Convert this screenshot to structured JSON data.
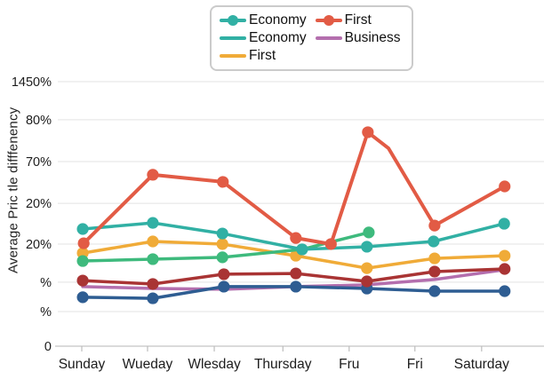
{
  "legend": {
    "items": [
      {
        "label": "Economy",
        "color": "#31b0a4",
        "marker_dot": true
      },
      {
        "label": "First",
        "color": "#e25b45",
        "marker_dot": true
      },
      {
        "label": "Economy",
        "color": "#31b0a4",
        "marker_dot": false
      },
      {
        "label": "Business",
        "color": "#b46fae",
        "marker_dot": false
      },
      {
        "label": "First",
        "color": "#f0ab38",
        "marker_dot": false
      }
    ]
  },
  "chart_data": {
    "type": "line",
    "title": "",
    "xlabel": "",
    "ylabel": "Average Pric tle difffenency",
    "categories": [
      "Sunday",
      "Wueday",
      "Wlesday",
      "Thursday",
      "Fru",
      "Fri",
      "Saturday"
    ],
    "x_tick_pos": [
      0.05,
      0.187,
      0.326,
      0.469,
      0.607,
      0.744,
      0.883
    ],
    "y_ticks": [
      {
        "label": "1450%",
        "v": 100
      },
      {
        "label": "80%",
        "v": 85.6
      },
      {
        "label": "70%",
        "v": 69.8
      },
      {
        "label": "20%",
        "v": 54.0
      },
      {
        "label": "20%",
        "v": 38.6
      },
      {
        "label": "%",
        "v": 24.2
      },
      {
        "label": "%",
        "v": 13.1
      },
      {
        "label": "0",
        "v": 0
      }
    ],
    "ylim": [
      0,
      100
    ],
    "grid": true,
    "legend_position": "top-center",
    "series": [
      {
        "legend_label": "Business",
        "color_name": "purple",
        "color": "#b46fae",
        "markers": false,
        "points": [
          [
            0.052,
            22.5
          ],
          [
            0.198,
            21.8
          ],
          [
            0.346,
            21.5
          ],
          [
            0.496,
            22.5
          ],
          [
            0.644,
            23.2
          ],
          [
            0.785,
            25.2
          ],
          [
            0.931,
            28.9
          ]
        ]
      },
      {
        "legend_label": null,
        "color_name": "dark-blue",
        "color": "#2e5d92",
        "markers": true,
        "points": [
          [
            0.052,
            18.5
          ],
          [
            0.198,
            18.1
          ],
          [
            0.346,
            22.5
          ],
          [
            0.496,
            22.5
          ],
          [
            0.644,
            21.8
          ],
          [
            0.785,
            20.8
          ],
          [
            0.931,
            20.8
          ]
        ]
      },
      {
        "legend_label": null,
        "color_name": "dark-red",
        "color": "#a93434",
        "markers": true,
        "points": [
          [
            0.052,
            24.8
          ],
          [
            0.198,
            23.5
          ],
          [
            0.346,
            27.2
          ],
          [
            0.496,
            27.5
          ],
          [
            0.644,
            24.5
          ],
          [
            0.785,
            28.2
          ],
          [
            0.931,
            29.2
          ]
        ]
      },
      {
        "legend_label": "First",
        "color_name": "yellow",
        "color": "#f0ab38",
        "markers": true,
        "points": [
          [
            0.052,
            35.2
          ],
          [
            0.198,
            39.6
          ],
          [
            0.343,
            38.6
          ],
          [
            0.496,
            34.2
          ],
          [
            0.644,
            29.5
          ],
          [
            0.785,
            33.2
          ],
          [
            0.931,
            34.2
          ]
        ]
      },
      {
        "legend_label": "Economy",
        "color_name": "green",
        "color": "#3eba7d",
        "markers": true,
        "points": [
          [
            0.052,
            32.2
          ],
          [
            0.198,
            32.9
          ],
          [
            0.343,
            33.6
          ],
          [
            0.509,
            36.6
          ],
          [
            0.648,
            43.0
          ]
        ]
      },
      {
        "legend_label": "Economy",
        "color_name": "teal",
        "color": "#31b0a4",
        "markers": true,
        "points": [
          [
            0.052,
            44.3
          ],
          [
            0.198,
            46.6
          ],
          [
            0.343,
            42.6
          ],
          [
            0.509,
            36.6
          ],
          [
            0.644,
            37.6
          ],
          [
            0.783,
            39.6
          ],
          [
            0.93,
            46.3
          ]
        ]
      },
      {
        "legend_label": "First",
        "color_name": "red-orange",
        "color": "#e25b45",
        "markers": true,
        "dot_skip": [
          6
        ],
        "points": [
          [
            0.054,
            38.9
          ],
          [
            0.198,
            64.8
          ],
          [
            0.344,
            62.1
          ],
          [
            0.496,
            40.9
          ],
          [
            0.569,
            38.6
          ],
          [
            0.646,
            80.9
          ],
          [
            0.689,
            74.8
          ],
          [
            0.785,
            45.6
          ],
          [
            0.931,
            60.4
          ]
        ]
      }
    ]
  },
  "style": {
    "grid_color": "#e3e3e3",
    "axis_color": "#c4c4c4",
    "tick_color": "#bdbdbd",
    "text_color": "#1c1c1c"
  }
}
